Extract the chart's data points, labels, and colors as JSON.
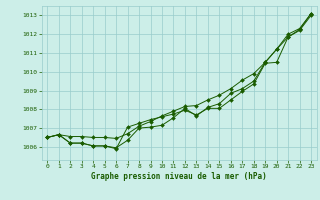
{
  "xlabel": "Graphe pression niveau de la mer (hPa)",
  "xlim": [
    -0.5,
    23.5
  ],
  "ylim": [
    1005.3,
    1013.5
  ],
  "yticks": [
    1006,
    1007,
    1008,
    1009,
    1010,
    1011,
    1012,
    1013
  ],
  "xticks": [
    0,
    1,
    2,
    3,
    4,
    5,
    6,
    7,
    8,
    9,
    10,
    11,
    12,
    13,
    14,
    15,
    16,
    17,
    18,
    19,
    20,
    21,
    22,
    23
  ],
  "bg_color": "#cceee8",
  "line_color": "#1a5c00",
  "grid_color": "#99cccc",
  "s1": [
    1006.5,
    1006.65,
    1006.55,
    1006.55,
    1006.5,
    1006.5,
    1006.45,
    1006.7,
    1007.1,
    1007.35,
    1007.65,
    1007.9,
    1008.15,
    1008.2,
    1008.5,
    1008.75,
    1009.1,
    1009.55,
    1009.9,
    1010.5,
    1011.2,
    1011.85,
    1012.25,
    1013.1
  ],
  "s2": [
    1006.5,
    1006.65,
    1006.2,
    1006.2,
    1006.05,
    1006.05,
    1005.95,
    1006.35,
    1007.0,
    1007.05,
    1007.15,
    1007.55,
    1008.05,
    1007.65,
    1008.1,
    1008.3,
    1008.85,
    1009.1,
    1009.5,
    1010.5,
    1011.2,
    1012.0,
    1012.3,
    1013.1
  ],
  "s3": [
    1006.5,
    1006.65,
    1006.2,
    1006.2,
    1006.05,
    1006.05,
    1005.9,
    1007.05,
    1007.25,
    1007.45,
    1007.6,
    1007.75,
    1007.95,
    1007.7,
    1008.05,
    1008.05,
    1008.5,
    1008.95,
    1009.35,
    1010.45,
    1010.5,
    1011.85,
    1012.2,
    1013.0
  ]
}
